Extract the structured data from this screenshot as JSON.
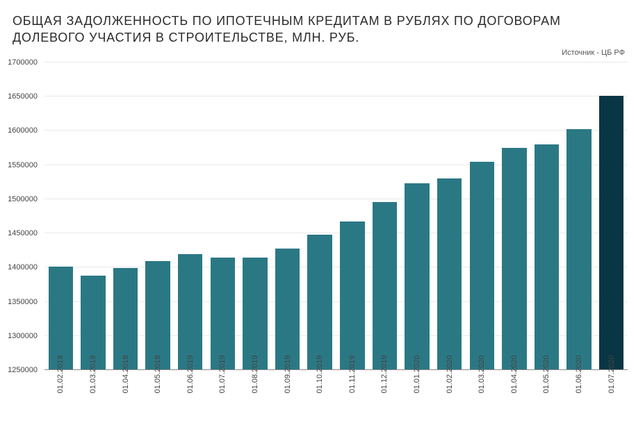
{
  "title_text": "ОБЩАЯ ЗАДОЛЖЕННОСТЬ ПО ИПОТЕЧНЫМ КРЕДИТАМ В РУБЛЯХ ПО ДОГОВОРАМ ДОЛЕВОГО УЧАСТИЯ В СТРОИТЕЛЬСТВЕ, МЛН. РУБ.",
  "title_fontsize": 18,
  "title_color": "#2b2b2b",
  "source_text": "Источник - ЦБ РФ",
  "chart": {
    "type": "bar",
    "categories": [
      "01.02.2019",
      "01.03.2019",
      "01.04.2019",
      "01.05.2019",
      "01.06.2019",
      "01.07.2019",
      "01.08.2019",
      "01.09.2019",
      "01.10.2019",
      "01.11.2019",
      "01.12.2019",
      "01.01.2020",
      "01.02.2020",
      "01.03.2020",
      "01.04.2020",
      "01.05.2020",
      "01.06.2020",
      "01.07.2020"
    ],
    "values": [
      1401000,
      1388000,
      1399000,
      1409000,
      1420000,
      1415000,
      1415000,
      1428000,
      1448000,
      1467000,
      1496000,
      1523000,
      1530000,
      1555000,
      1575000,
      1580000,
      1602000,
      1651000
    ],
    "bar_color_default": "#2b7885",
    "bar_color_highlight": "#093644",
    "highlight_index": 17,
    "ylim_min": 1250000,
    "ylim_max": 1700000,
    "ytick_step": 50000,
    "background_color": "#ffffff",
    "grid_color": "#e9e9e9",
    "axis_color": "#888888",
    "label_fontsize": 11,
    "label_color": "#444444",
    "bar_width_ratio": 0.76
  }
}
